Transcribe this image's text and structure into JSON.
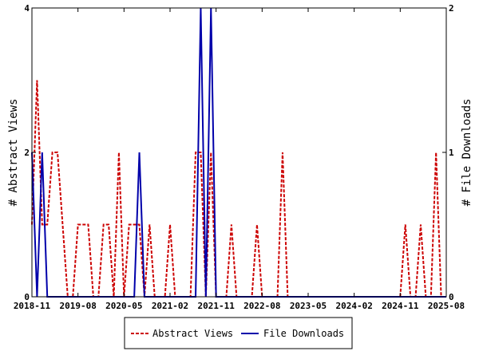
{
  "chart_data": {
    "type": "line",
    "title": "",
    "xlabel": "",
    "ylabel_left": "# Abstract Views",
    "ylabel_right": "# File Downloads",
    "x_tick_labels": [
      "2018-11",
      "2019-08",
      "2020-05",
      "2021-02",
      "2021-11",
      "2022-08",
      "2023-05",
      "2024-02",
      "2024-11",
      "2025-08"
    ],
    "x_range": [
      "2018-11",
      "2025-08"
    ],
    "y_left": {
      "min": 0,
      "max": 4,
      "tick_labels": [
        "0",
        "2",
        "4"
      ]
    },
    "y_right": {
      "min": 0,
      "max": 2,
      "tick_labels": [
        "0",
        "1",
        "2"
      ]
    },
    "grid": false,
    "legend_position": "bottom",
    "series": [
      {
        "name": "Abstract Views",
        "axis": "left",
        "color": "#cc0000",
        "style": "dashed",
        "x": [
          "2018-11",
          "2018-12",
          "2019-01",
          "2019-02",
          "2019-03",
          "2019-04",
          "2019-05",
          "2019-06",
          "2019-07",
          "2019-08",
          "2019-09",
          "2019-10",
          "2019-11",
          "2019-12",
          "2020-01",
          "2020-02",
          "2020-03",
          "2020-04",
          "2020-05",
          "2020-06",
          "2020-07",
          "2020-08",
          "2020-09",
          "2020-10",
          "2020-11",
          "2020-12",
          "2021-01",
          "2021-02",
          "2021-03",
          "2021-04",
          "2021-05",
          "2021-06",
          "2021-07",
          "2021-08",
          "2021-09",
          "2021-10",
          "2021-11",
          "2021-12",
          "2022-01",
          "2022-02",
          "2022-03",
          "2022-04",
          "2022-05",
          "2022-06",
          "2022-07",
          "2022-08",
          "2022-09",
          "2022-10",
          "2022-11",
          "2022-12",
          "2023-01",
          "2023-02",
          "2023-03",
          "2023-04",
          "2023-05",
          "2023-06",
          "2023-07",
          "2023-08",
          "2023-09",
          "2023-10",
          "2023-11",
          "2023-12",
          "2024-01",
          "2024-02",
          "2024-03",
          "2024-04",
          "2024-05",
          "2024-06",
          "2024-07",
          "2024-08",
          "2024-09",
          "2024-10",
          "2024-11",
          "2024-12",
          "2025-01",
          "2025-02",
          "2025-03",
          "2025-04",
          "2025-05",
          "2025-06",
          "2025-07",
          "2025-08"
        ],
        "values": [
          1,
          3,
          1,
          1,
          2,
          2,
          1,
          0,
          0,
          1,
          1,
          1,
          0,
          0,
          1,
          1,
          0,
          2,
          0,
          1,
          1,
          1,
          0,
          1,
          0,
          0,
          0,
          1,
          0,
          0,
          0,
          0,
          2,
          2,
          0,
          2,
          0,
          0,
          0,
          1,
          0,
          0,
          0,
          0,
          1,
          0,
          0,
          0,
          0,
          2,
          0,
          0,
          0,
          0,
          0,
          0,
          0,
          0,
          0,
          0,
          0,
          0,
          0,
          0,
          0,
          0,
          0,
          0,
          0,
          0,
          0,
          0,
          0,
          1,
          0,
          0,
          1,
          0,
          0,
          2,
          0,
          0
        ]
      },
      {
        "name": "File Downloads",
        "axis": "right",
        "color": "#0000aa",
        "style": "solid",
        "x": [
          "2018-11",
          "2018-12",
          "2019-01",
          "2019-02",
          "2019-03",
          "2019-04",
          "2019-05",
          "2019-06",
          "2019-07",
          "2019-08",
          "2019-09",
          "2019-10",
          "2019-11",
          "2019-12",
          "2020-01",
          "2020-02",
          "2020-03",
          "2020-04",
          "2020-05",
          "2020-06",
          "2020-07",
          "2020-08",
          "2020-09",
          "2020-10",
          "2020-11",
          "2020-12",
          "2021-01",
          "2021-02",
          "2021-03",
          "2021-04",
          "2021-05",
          "2021-06",
          "2021-07",
          "2021-08",
          "2021-09",
          "2021-10",
          "2021-11",
          "2021-12",
          "2022-01",
          "2022-02",
          "2022-03",
          "2022-04",
          "2022-05",
          "2022-06",
          "2022-07",
          "2022-08",
          "2022-09",
          "2022-10",
          "2022-11",
          "2022-12",
          "2023-01",
          "2023-02",
          "2023-03",
          "2023-04",
          "2023-05",
          "2023-06",
          "2023-07",
          "2023-08",
          "2023-09",
          "2023-10",
          "2023-11",
          "2023-12",
          "2024-01",
          "2024-02",
          "2024-03",
          "2024-04",
          "2024-05",
          "2024-06",
          "2024-07",
          "2024-08",
          "2024-09",
          "2024-10",
          "2024-11",
          "2024-12",
          "2025-01",
          "2025-02",
          "2025-03",
          "2025-04",
          "2025-05",
          "2025-06",
          "2025-07",
          "2025-08"
        ],
        "values": [
          1,
          0,
          1,
          0,
          0,
          0,
          0,
          0,
          0,
          0,
          0,
          0,
          0,
          0,
          0,
          0,
          0,
          0,
          0,
          0,
          0,
          1,
          0,
          0,
          0,
          0,
          0,
          0,
          0,
          0,
          0,
          0,
          0,
          2,
          0,
          2,
          0,
          0,
          0,
          0,
          0,
          0,
          0,
          0,
          0,
          0,
          0,
          0,
          0,
          0,
          0,
          0,
          0,
          0,
          0,
          0,
          0,
          0,
          0,
          0,
          0,
          0,
          0,
          0,
          0,
          0,
          0,
          0,
          0,
          0,
          0,
          0,
          0,
          0,
          0,
          0,
          0,
          0,
          0,
          0,
          0,
          0
        ]
      }
    ]
  }
}
